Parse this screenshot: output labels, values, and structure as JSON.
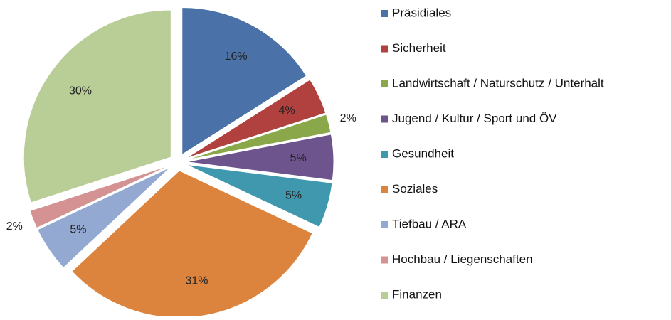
{
  "chart_data": {
    "type": "pie",
    "categories": [
      "Präsidiales",
      "Sicherheit",
      "Landwirtschaft / Naturschutz / Unterhalt",
      "Jugend / Kultur / Sport und ÖV",
      "Gesundheit",
      "Soziales",
      "Tiefbau / ARA",
      "Hochbau / Liegenschaften",
      "Finanzen"
    ],
    "values": [
      16,
      4,
      2,
      5,
      5,
      31,
      5,
      2,
      30
    ],
    "value_labels": [
      "16%",
      "4%",
      "2%",
      "5%",
      "5%",
      "31%",
      "5%",
      "2%",
      "30%"
    ],
    "colors": [
      "#4a72a8",
      "#b0413e",
      "#8aa84a",
      "#6e548d",
      "#3f98ae",
      "#dc843e",
      "#93a9d2",
      "#d49392",
      "#b9cd96"
    ],
    "legend": "right"
  }
}
